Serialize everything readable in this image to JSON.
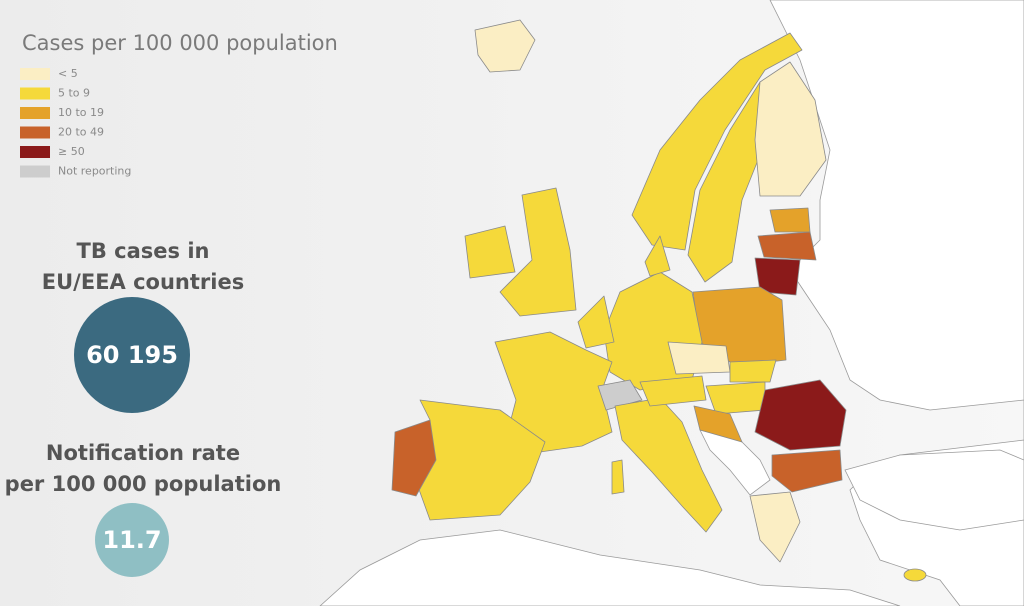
{
  "legend": {
    "title": "Cases per 100 000 population",
    "items": [
      {
        "label": "< 5",
        "color": "#fbeec4"
      },
      {
        "label": "5 to 9",
        "color": "#f5d93a"
      },
      {
        "label": "10 to 19",
        "color": "#e4a22a"
      },
      {
        "label": "20 to 49",
        "color": "#c8622a"
      },
      {
        "label": "≥ 50",
        "color": "#8b1a1a"
      },
      {
        "label": "Not reporting",
        "color": "#cdcdcd"
      }
    ]
  },
  "stats": [
    {
      "label_lines": [
        "TB cases in",
        "EU/EEA countries"
      ],
      "value": "60 195"
    },
    {
      "label_lines": [
        "Notification rate",
        "per 100 000 population"
      ],
      "value": "11.7"
    }
  ]
}
